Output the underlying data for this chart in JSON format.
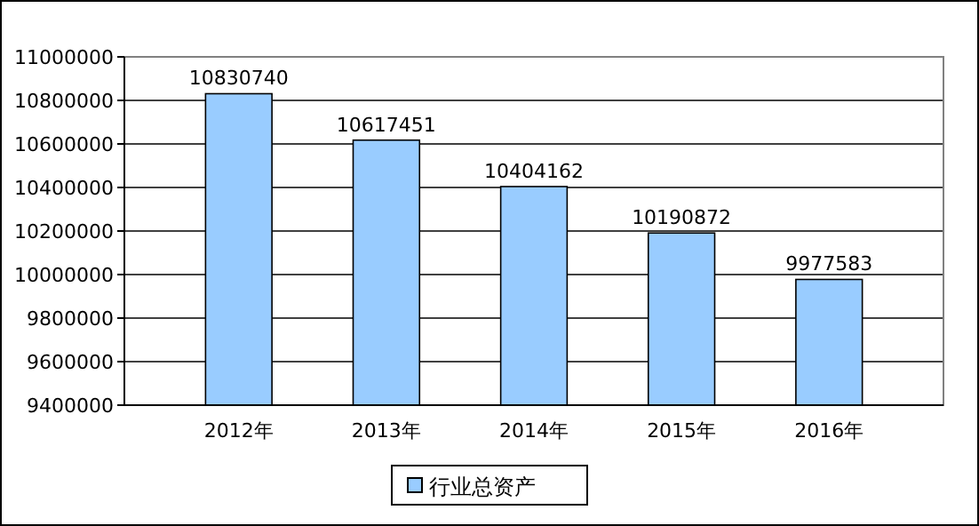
{
  "chart_data": {
    "type": "bar",
    "categories": [
      "2012年",
      "2013年",
      "2014年",
      "2015年",
      "2016年"
    ],
    "series": [
      {
        "name": "行业总资产",
        "color": "#99ccff",
        "values": [
          10830740,
          10617451,
          10404162,
          10190872,
          9977583
        ]
      }
    ],
    "ylim": [
      9400000,
      11000000
    ],
    "yticks": [
      9400000,
      9600000,
      9800000,
      10000000,
      10200000,
      10400000,
      10600000,
      10800000,
      11000000
    ],
    "grid": "y",
    "legend": "bottom",
    "data_labels": true
  }
}
